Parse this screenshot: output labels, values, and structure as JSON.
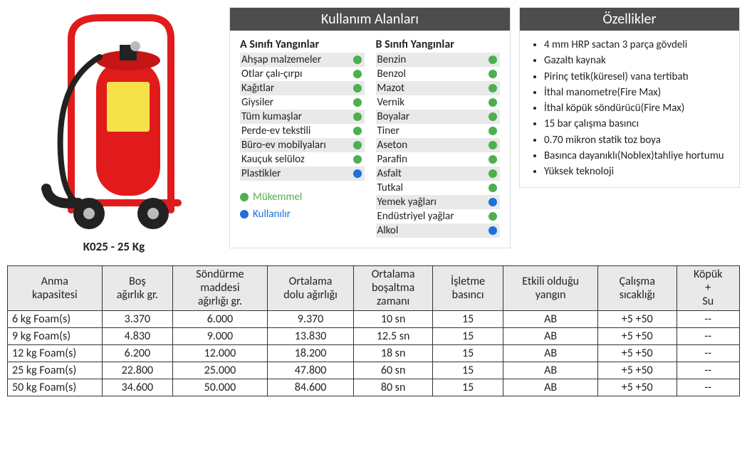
{
  "product": {
    "name": "K025 - 25 Kg"
  },
  "usage": {
    "header": "Kullanım Alanları",
    "colA": {
      "title": "A Sınıfı Yangınlar",
      "rows": [
        {
          "label": "Ahşap malzemeler",
          "dot": "green"
        },
        {
          "label": "Otlar çalı-çırpı",
          "dot": "green"
        },
        {
          "label": "Kağıtlar",
          "dot": "green"
        },
        {
          "label": "Giysiler",
          "dot": "green"
        },
        {
          "label": "Tüm kumaşlar",
          "dot": "green"
        },
        {
          "label": "Perde-ev tekstili",
          "dot": "green"
        },
        {
          "label": "Büro-ev mobilyaları",
          "dot": "green"
        },
        {
          "label": "Kauçuk selüloz",
          "dot": "green"
        },
        {
          "label": "Plastikler",
          "dot": "blue"
        }
      ]
    },
    "colB": {
      "title": "B Sınıfı Yangınlar",
      "rows": [
        {
          "label": "Benzin",
          "dot": "green"
        },
        {
          "label": "Benzol",
          "dot": "green"
        },
        {
          "label": "Mazot",
          "dot": "green"
        },
        {
          "label": "Vernik",
          "dot": "green"
        },
        {
          "label": "Boyalar",
          "dot": "green"
        },
        {
          "label": "Tiner",
          "dot": "green"
        },
        {
          "label": "Aseton",
          "dot": "green"
        },
        {
          "label": "Parafin",
          "dot": "green"
        },
        {
          "label": "Asfalt",
          "dot": "green"
        },
        {
          "label": "Tutkal",
          "dot": "green"
        },
        {
          "label": "Yemek yağları",
          "dot": "blue"
        },
        {
          "label": "Endüstriyel yağlar",
          "dot": "green"
        },
        {
          "label": "Alkol",
          "dot": "blue"
        }
      ]
    },
    "legend": {
      "green": "Mükemmel",
      "blue": "Kullanılır"
    }
  },
  "features": {
    "header": "Özellikler",
    "items": [
      "4 mm HRP sactan 3 parça gövdeli",
      "Gazaltı kaynak",
      "Pirinç tetik(küresel) vana tertibatı",
      "İthal manometre(Fire Max)",
      "İthal köpük söndürücü(Fire Max)",
      "15 bar çalışma basıncı",
      "0.70 mikron statik toz boya",
      "Basınca dayanıklı(Noblex)tahliye hortumu",
      "Yüksek teknoloji"
    ]
  },
  "table": {
    "columns": [
      "Anma kapasitesi",
      "Boş ağırlık gr.",
      "Söndürme maddesi ağırlığı gr.",
      "Ortalama dolu ağırlığı",
      "Ortalama boşaltma zamanı",
      "İşletme basıncı",
      "Etkili olduğu yangın",
      "Çalışma sıcaklığı",
      "Köpük + Su"
    ],
    "rows": [
      [
        "6 kg Foam(s)",
        "3.370",
        "6.000",
        "9.370",
        "10 sn",
        "15",
        "AB",
        "+5 +50",
        "--"
      ],
      [
        "9 kg Foam(s)",
        "4.830",
        "9.000",
        "13.830",
        "12.5 sn",
        "15",
        "AB",
        "+5 +50",
        "--"
      ],
      [
        "12 kg Foam(s)",
        "6.200",
        "12.000",
        "18.200",
        "18 sn",
        "15",
        "AB",
        "+5 +50",
        "--"
      ],
      [
        "25 kg Foam(s)",
        "22.800",
        "25.000",
        "47.800",
        "60 sn",
        "15",
        "AB",
        "+5 +50",
        "--"
      ],
      [
        "50 kg Foam(s)",
        "34.600",
        "50.000",
        "84.600",
        "80 sn",
        "15",
        "AB",
        "+5 +50",
        "--"
      ]
    ]
  },
  "colors": {
    "header_bg": "#4d4d4d",
    "alt_row": "#e9e9e9",
    "dot_green": "#4caf50",
    "dot_blue": "#1e6fd9",
    "ext_red": "#e11b1b",
    "ext_dark": "#222222"
  }
}
